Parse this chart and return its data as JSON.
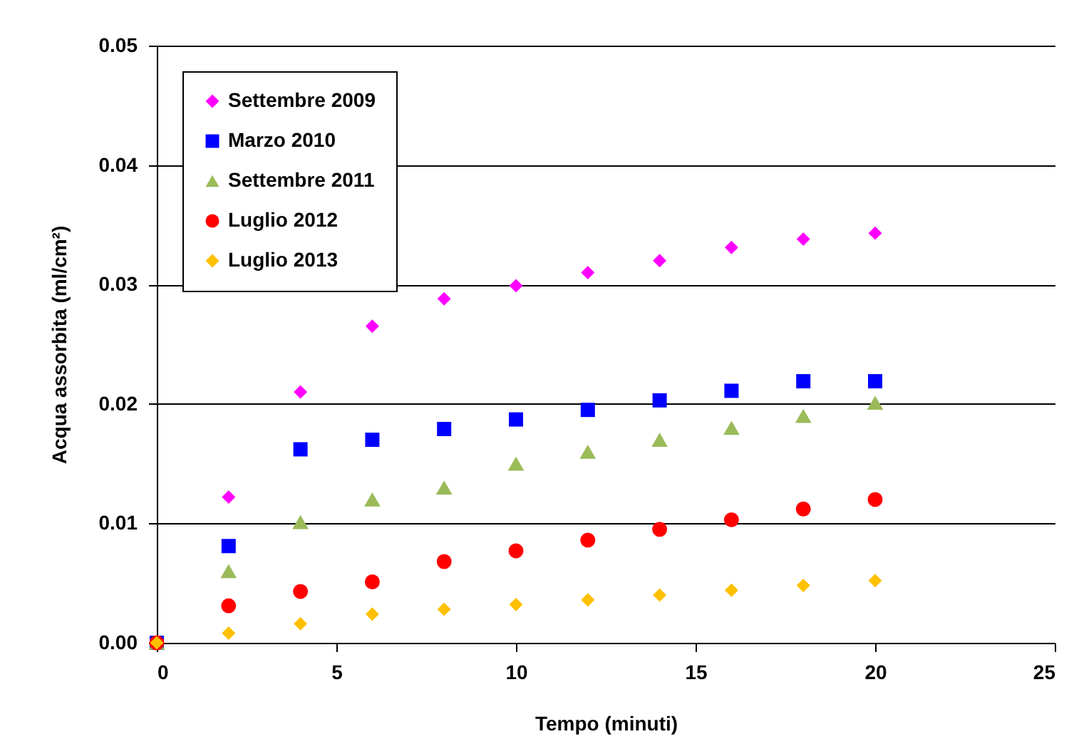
{
  "chart_data": {
    "type": "scatter",
    "xlabel": "Tempo (minuti)",
    "ylabel": "Acqua assorbita (ml/cm²)",
    "x": [
      0,
      2,
      4,
      6,
      8,
      10,
      12,
      14,
      16,
      18,
      20
    ],
    "series": [
      {
        "name": "Settembre 2009",
        "color": "#ff00ff",
        "marker": "diamond",
        "values": [
          null,
          0.0122,
          0.021,
          0.0265,
          0.0288,
          0.0299,
          0.031,
          0.032,
          0.0331,
          0.0338,
          0.0343
        ]
      },
      {
        "name": "Marzo 2010",
        "color": "#0000ff",
        "marker": "square",
        "values": [
          0,
          0.0081,
          0.0162,
          0.017,
          0.0179,
          0.0187,
          0.0195,
          0.0203,
          0.0211,
          0.0219,
          0.0219
        ]
      },
      {
        "name": "Settembre 2011",
        "color": "#9bbb59",
        "marker": "triangle",
        "values": [
          0,
          0.006,
          0.0101,
          0.012,
          0.013,
          0.015,
          0.016,
          0.017,
          0.018,
          0.019,
          0.0201
        ]
      },
      {
        "name": "Luglio 2012",
        "color": "#ff0000",
        "marker": "circle",
        "values": [
          0,
          0.0031,
          0.0043,
          0.0051,
          0.0068,
          0.0077,
          0.0086,
          0.0095,
          0.0103,
          0.0112,
          0.012
        ]
      },
      {
        "name": "Luglio 2013",
        "color": "#ffc000",
        "marker": "diamond",
        "values": [
          0,
          0.0008,
          0.0016,
          0.0024,
          0.0028,
          0.0032,
          0.0036,
          0.004,
          0.0044,
          0.0048,
          0.0052
        ]
      }
    ],
    "xlim": [
      0,
      25
    ],
    "xticks": [
      0,
      5,
      10,
      15,
      20,
      25
    ],
    "ylim": [
      0,
      0.05
    ],
    "yticks": [
      {
        "value": 0,
        "label": "0.00"
      },
      0.01,
      0.02,
      0.03,
      0.04,
      0.05
    ],
    "grid": "y",
    "legend": "top left"
  }
}
